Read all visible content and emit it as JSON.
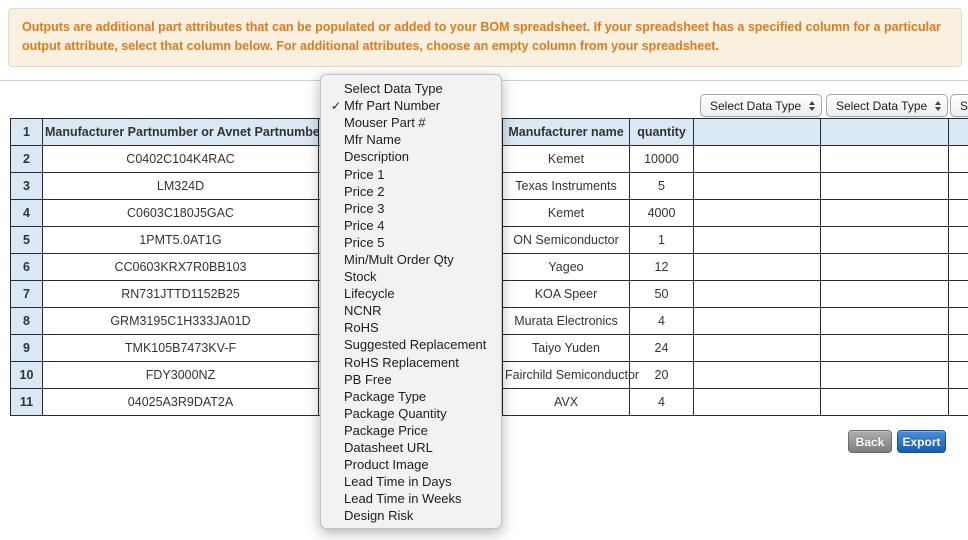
{
  "banner": {
    "text": "Outputs are additional part attributes that can be populated or added to your BOM spreadsheet. If your spreadsheet has a specified column for a particular output attribute, select that column below. For additional attributes, choose an empty column from your spreadsheet."
  },
  "colors": {
    "banner_text": "#df7a1e",
    "banner_bg": "#f9f0df",
    "table_header_bg": "#d9e8f4",
    "export_button_blue": "#1a5cb0",
    "back_button_gray": "#7e7e7e"
  },
  "column_selects": {
    "labels": [
      "Select Data Type",
      "Select Data Type",
      "Select Data Type"
    ]
  },
  "menu": {
    "selected": "Mfr Part Number",
    "items": [
      {
        "check": "",
        "label": "Select Data Type"
      },
      {
        "check": "✓",
        "label": "Mfr Part Number"
      },
      {
        "check": "",
        "label": "Mouser Part #"
      },
      {
        "check": "",
        "label": "Mfr Name"
      },
      {
        "check": "",
        "label": "Description"
      },
      {
        "check": "",
        "label": "Price 1"
      },
      {
        "check": "",
        "label": "Price 2"
      },
      {
        "check": "",
        "label": "Price 3"
      },
      {
        "check": "",
        "label": "Price 4"
      },
      {
        "check": "",
        "label": "Price 5"
      },
      {
        "check": "",
        "label": "Min/Mult Order Qty"
      },
      {
        "check": "",
        "label": "Stock"
      },
      {
        "check": "",
        "label": "Lifecycle"
      },
      {
        "check": "",
        "label": "NCNR"
      },
      {
        "check": "",
        "label": "RoHS"
      },
      {
        "check": "",
        "label": "Suggested Replacement"
      },
      {
        "check": "",
        "label": "RoHS Replacement"
      },
      {
        "check": "",
        "label": "PB Free"
      },
      {
        "check": "",
        "label": "Package Type"
      },
      {
        "check": "",
        "label": "Package Quantity"
      },
      {
        "check": "",
        "label": "Package Price"
      },
      {
        "check": "",
        "label": "Datasheet URL"
      },
      {
        "check": "",
        "label": "Product Image"
      },
      {
        "check": "",
        "label": "Lead Time in Days"
      },
      {
        "check": "",
        "label": "Lead Time in Weeks"
      },
      {
        "check": "",
        "label": "Design Risk"
      }
    ]
  },
  "table": {
    "header": {
      "num": "1",
      "part": "Manufacturer Partnumber or Avnet Partnumber",
      "hidden": "",
      "mfr": "Manufacturer name",
      "qty": "quantity",
      "col6": "",
      "col7": "",
      "col8": ""
    },
    "rows": [
      {
        "num": "2",
        "part": "C0402C104K4RAC",
        "hidden": "",
        "mfr": "Kemet",
        "qty": "10000",
        "col6": "",
        "col7": "",
        "col8": ""
      },
      {
        "num": "3",
        "part": "LM324D",
        "hidden": "",
        "mfr": "Texas Instruments",
        "qty": "5",
        "col6": "",
        "col7": "",
        "col8": ""
      },
      {
        "num": "4",
        "part": "C0603C180J5GAC",
        "hidden": "",
        "mfr": "Kemet",
        "qty": "4000",
        "col6": "",
        "col7": "",
        "col8": ""
      },
      {
        "num": "5",
        "part": "1PMT5.0AT1G",
        "hidden": "",
        "mfr": "ON Semiconductor",
        "qty": "1",
        "col6": "",
        "col7": "",
        "col8": ""
      },
      {
        "num": "6",
        "part": "CC0603KRX7R0BB103",
        "hidden": "",
        "mfr": "Yageo",
        "qty": "12",
        "col6": "",
        "col7": "",
        "col8": ""
      },
      {
        "num": "7",
        "part": "RN731JTTD1152B25",
        "hidden": "",
        "mfr": "KOA Speer",
        "qty": "50",
        "col6": "",
        "col7": "",
        "col8": ""
      },
      {
        "num": "8",
        "part": "GRM3195C1H333JA01D",
        "hidden": "",
        "mfr": "Murata Electronics",
        "qty": "4",
        "col6": "",
        "col7": "",
        "col8": ""
      },
      {
        "num": "9",
        "part": "TMK105B7473KV-F",
        "hidden": "",
        "mfr": "Taiyo Yuden",
        "qty": "24",
        "col6": "",
        "col7": "",
        "col8": ""
      },
      {
        "num": "10",
        "part": "FDY3000NZ",
        "hidden": "",
        "mfr": "Fairchild Semiconductor",
        "qty": "20",
        "col6": "",
        "col7": "",
        "col8": ""
      },
      {
        "num": "11",
        "part": "04025A3R9DAT2A",
        "hidden": "",
        "mfr": "AVX",
        "qty": "4",
        "col6": "",
        "col7": "",
        "col8": ""
      }
    ]
  },
  "buttons": {
    "back": "Back",
    "export": "Export"
  }
}
